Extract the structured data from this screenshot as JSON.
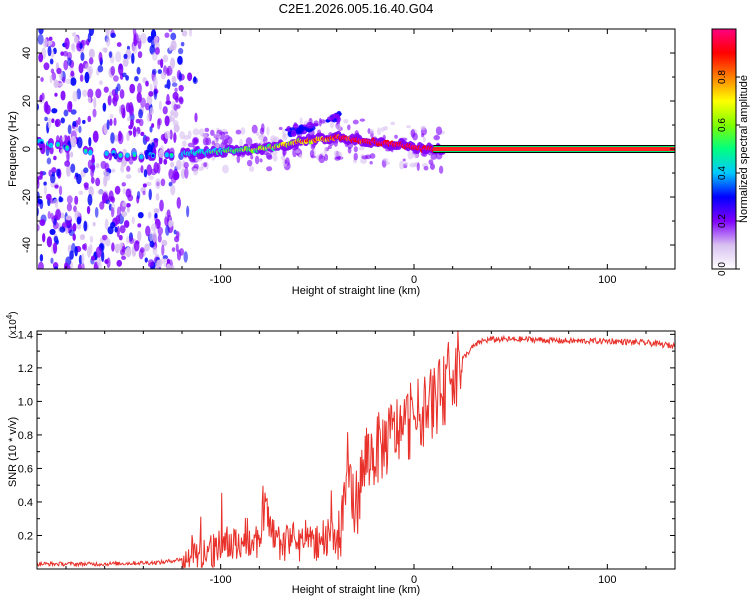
{
  "title": "C2E1.2026.005.16.40.G04",
  "chart_data": [
    {
      "type": "heatmap",
      "xlabel": "Height of straight line (km)",
      "ylabel": "Frequency (Hz)",
      "xlim": [
        -195,
        135
      ],
      "ylim": [
        -50,
        50
      ],
      "xticks": [
        -100,
        0,
        100
      ],
      "yticks": [
        -40,
        -20,
        0,
        20,
        40
      ],
      "colorbar": {
        "label": "Normalized spectral amplitude",
        "range": [
          0,
          1
        ],
        "ticks": [
          "0.0",
          "0.2",
          "0.4",
          "0.6",
          "0.8"
        ],
        "colors": [
          "#ffffff",
          "#d8c0f0",
          "#8000ff",
          "#0000ff",
          "#00c8ff",
          "#00ff80",
          "#80ff00",
          "#ffff00",
          "#ff8000",
          "#ff0000",
          "#ff0080"
        ]
      },
      "ridge": {
        "x": [
          -195,
          -180,
          -160,
          -140,
          -120,
          -100,
          -80,
          -70,
          -60,
          -50,
          -40,
          -30,
          -20,
          -10,
          0,
          5,
          10,
          20,
          135
        ],
        "freq": [
          3,
          1,
          -2,
          -3,
          -2,
          -1,
          0,
          1,
          3,
          4,
          5,
          4,
          3,
          2,
          1,
          0,
          0,
          0,
          0
        ]
      },
      "upper_branch": {
        "x": [
          -65,
          -60,
          -55,
          -50,
          -45,
          -40,
          -38
        ],
        "freq": [
          7,
          8,
          9,
          10,
          11,
          13,
          15
        ]
      },
      "noise_region_x": [
        -195,
        -120
      ]
    },
    {
      "type": "line",
      "xlabel": "Height of straight line (km)",
      "ylabel": "SNR (10 * v/v)",
      "y_multiplier": "(x10",
      "y_multiplier_exp": "4",
      "xlim": [
        -195,
        135
      ],
      "ylim": [
        0,
        1.42
      ],
      "xticks": [
        -100,
        0,
        100
      ],
      "yticks": [
        0.2,
        0.4,
        0.6,
        0.8,
        1.0,
        1.2,
        1.4
      ],
      "series": [
        {
          "name": "SNR",
          "color": "#e8312a",
          "x": [
            -195,
            -160,
            -130,
            -120,
            -110,
            -100,
            -90,
            -80,
            -77,
            -72,
            -65,
            -55,
            -45,
            -42,
            -38,
            -35,
            -30,
            -25,
            -20,
            -15,
            -10,
            -5,
            0,
            5,
            10,
            15,
            20,
            25,
            30,
            35,
            40,
            50,
            60,
            80,
            100,
            120,
            135
          ],
          "y": [
            0.03,
            0.03,
            0.04,
            0.06,
            0.1,
            0.13,
            0.15,
            0.17,
            0.35,
            0.15,
            0.17,
            0.16,
            0.16,
            0.2,
            0.2,
            0.55,
            0.38,
            0.65,
            0.7,
            0.75,
            0.82,
            0.85,
            0.9,
            0.95,
            1.0,
            1.05,
            1.18,
            1.25,
            1.32,
            1.36,
            1.37,
            1.37,
            1.37,
            1.36,
            1.36,
            1.35,
            1.33
          ]
        }
      ]
    }
  ]
}
